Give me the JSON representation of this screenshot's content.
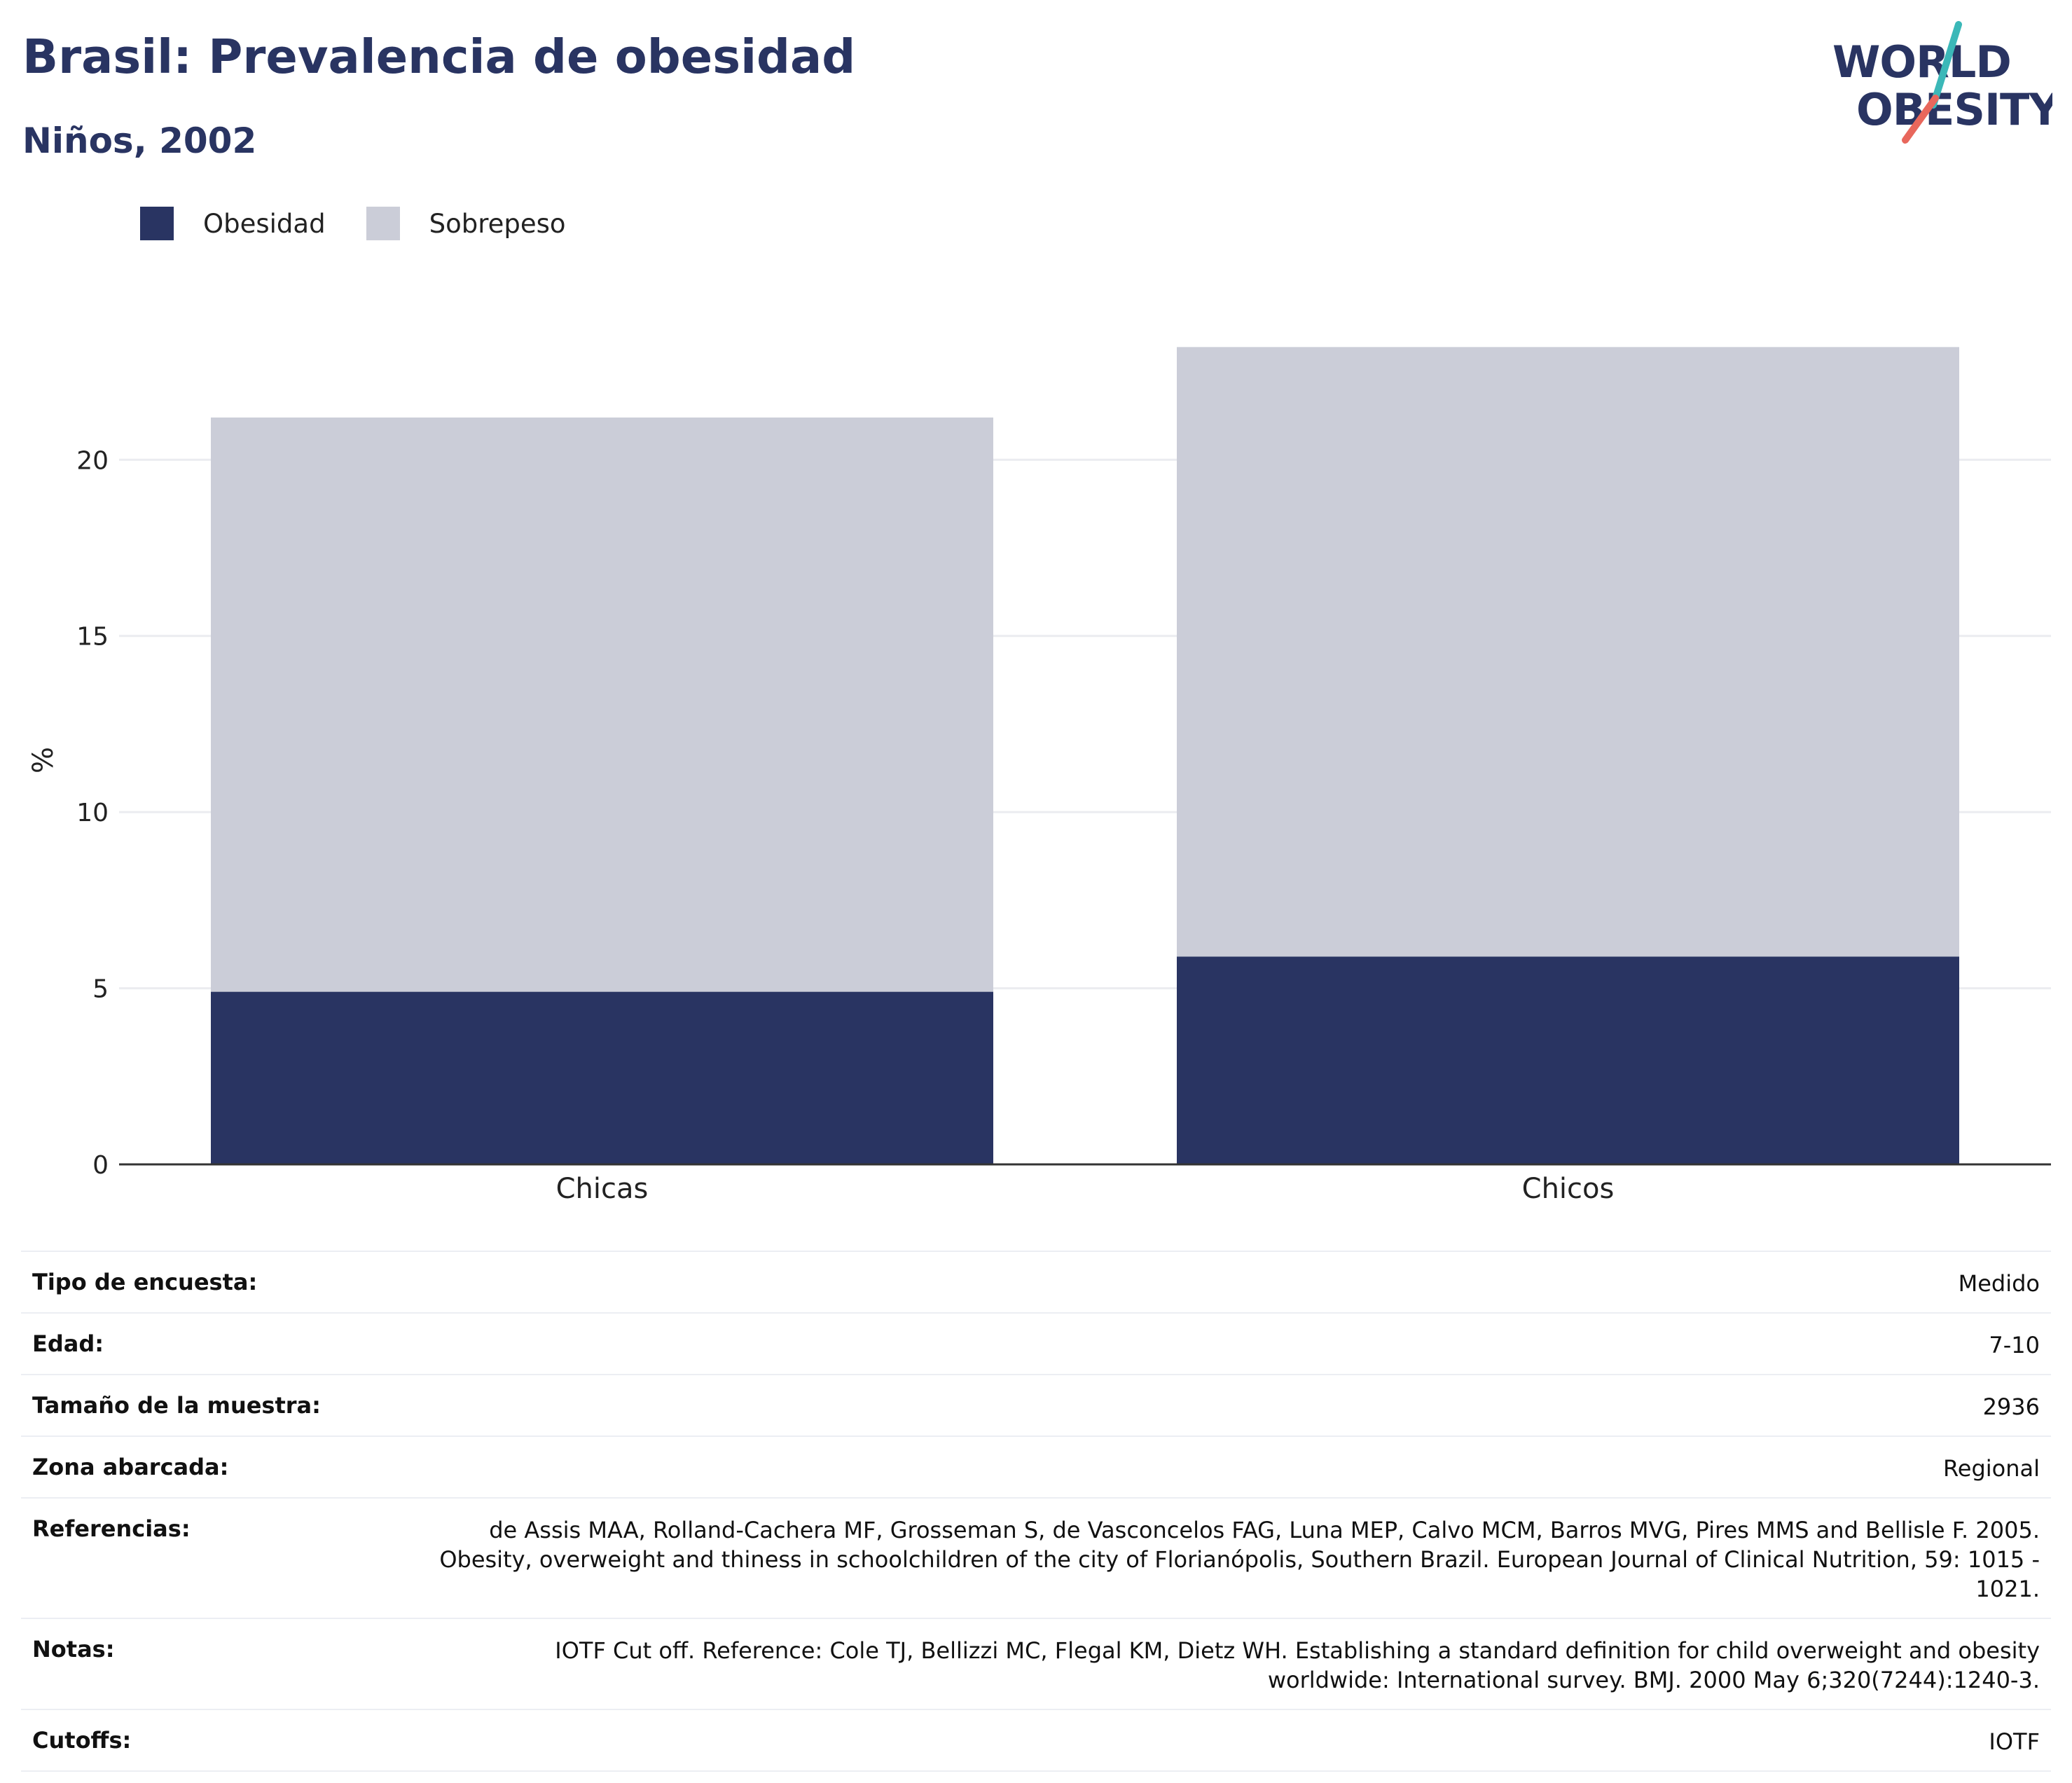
{
  "header": {
    "title": "Brasil: Prevalencia de obesidad",
    "subtitle": "Niños, 2002"
  },
  "logo": {
    "line1": "WORLD",
    "line2": "OBESITY",
    "colors": {
      "text": "#293462",
      "slash_top": "#3bb8b8",
      "slash_bottom": "#e8675c"
    }
  },
  "legend": [
    {
      "label": "Obesidad",
      "color": "#293462"
    },
    {
      "label": "Sobrepeso",
      "color": "#cbcdd8"
    }
  ],
  "chart_data": {
    "type": "bar",
    "stacked": true,
    "categories": [
      "Chicas",
      "Chicos"
    ],
    "series": [
      {
        "name": "Obesidad",
        "values": [
          4.9,
          5.9
        ],
        "color": "#293462"
      },
      {
        "name": "Sobrepeso",
        "values": [
          16.3,
          17.3
        ],
        "color": "#cbcdd8"
      }
    ],
    "ylabel": "%",
    "yticks": [
      0,
      5,
      10,
      15,
      20
    ],
    "ylim": [
      0,
      24.5
    ],
    "grid": true
  },
  "details": [
    {
      "label": "Tipo de encuesta:",
      "value": "Medido"
    },
    {
      "label": "Edad:",
      "value": "7-10"
    },
    {
      "label": "Tamaño de la muestra:",
      "value": "2936"
    },
    {
      "label": "Zona abarcada:",
      "value": "Regional"
    },
    {
      "label": "Referencias:",
      "value": "de Assis MAA, Rolland-Cachera MF, Grosseman S, de Vasconcelos FAG, Luna MEP, Calvo MCM, Barros MVG, Pires MMS and Bellisle F. 2005. Obesity, overweight and thiness in schoolchildren of the city of Florianópolis, Southern Brazil. European Journal of Clinical Nutrition, 59: 1015 - 1021."
    },
    {
      "label": "Notas:",
      "value": "IOTF Cut off. Reference: Cole TJ, Bellizzi MC, Flegal KM, Dietz WH. Establishing a standard definition for child overweight and obesity worldwide: International survey. BMJ. 2000 May 6;320(7244):1240-3."
    },
    {
      "label": "Cutoffs:",
      "value": "IOTF"
    }
  ]
}
